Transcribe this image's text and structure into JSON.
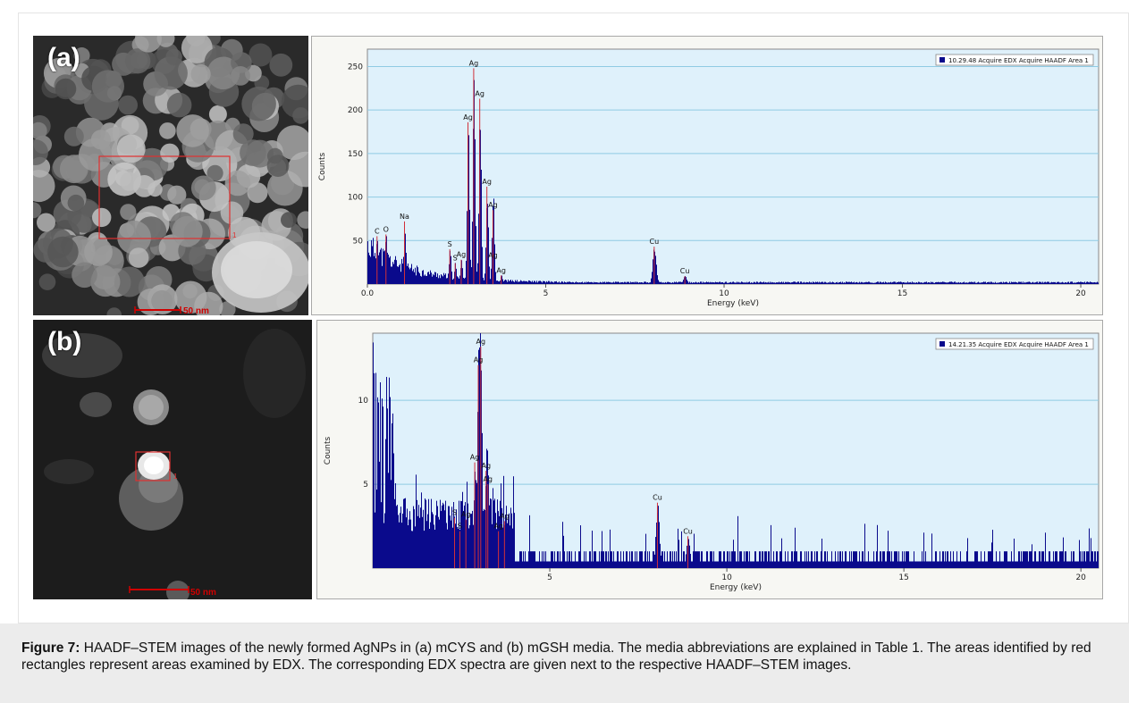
{
  "panels": [
    {
      "id": "a",
      "tag": "(a)",
      "scale_label": "50 nm",
      "region_label": "1",
      "chart_data": {
        "type": "bar",
        "xlabel": "Energy (keV)",
        "ylabel": "Counts",
        "xlim": [
          0,
          20.5
        ],
        "ylim": [
          0,
          270
        ],
        "xticks": [
          "0.0",
          "5",
          "10",
          "15",
          "20"
        ],
        "yticks": [
          "50",
          "100",
          "150",
          "200",
          "250"
        ],
        "legend": "10.29.48 Acquire EDX Acquire HAADF Area 1",
        "legend_position": "top-right",
        "grid": "horizontal",
        "peaks": [
          {
            "label": "C",
            "x": 0.27,
            "y": 55
          },
          {
            "label": "O",
            "x": 0.52,
            "y": 57
          },
          {
            "label": "Na",
            "x": 1.04,
            "y": 72
          },
          {
            "label": "S",
            "x": 2.31,
            "y": 40
          },
          {
            "label": "S",
            "x": 2.46,
            "y": 24
          },
          {
            "label": "Ag",
            "x": 2.63,
            "y": 28
          },
          {
            "label": "Ag",
            "x": 2.98,
            "y": 248
          },
          {
            "label": "Ag",
            "x": 3.15,
            "y": 213
          },
          {
            "label": "Ag",
            "x": 2.82,
            "y": 186
          },
          {
            "label": "Ag",
            "x": 3.35,
            "y": 112
          },
          {
            "label": "Ag",
            "x": 3.52,
            "y": 85
          },
          {
            "label": "Ag",
            "x": 3.52,
            "y": 27
          },
          {
            "label": "Ag",
            "x": 3.75,
            "y": 10
          },
          {
            "label": "Cu",
            "x": 8.04,
            "y": 43
          },
          {
            "label": "Cu",
            "x": 8.9,
            "y": 9
          }
        ]
      }
    },
    {
      "id": "b",
      "tag": "(b)",
      "scale_label": "50 nm",
      "region_label": "1",
      "chart_data": {
        "type": "bar",
        "xlabel": "Energy (keV)",
        "ylabel": "Counts",
        "xlim": [
          0,
          20.5
        ],
        "ylim": [
          0,
          14
        ],
        "xticks": [
          "5",
          "10",
          "15",
          "20"
        ],
        "yticks": [
          "5",
          "10"
        ],
        "legend": "14.21.35 Acquire EDX Acquire HAADF Area 1",
        "legend_position": "top-right",
        "grid": "horizontal",
        "peaks": [
          {
            "label": "Ag",
            "x": 3.05,
            "y": 13.2
          },
          {
            "label": "Ag",
            "x": 2.98,
            "y": 12.1
          },
          {
            "label": "Ag",
            "x": 2.88,
            "y": 6.3
          },
          {
            "label": "Ag",
            "x": 3.2,
            "y": 5.8
          },
          {
            "label": "Ag",
            "x": 3.25,
            "y": 5.0
          },
          {
            "label": "S",
            "x": 2.31,
            "y": 3.0
          },
          {
            "label": "S",
            "x": 2.46,
            "y": 2.2
          },
          {
            "label": "Ag",
            "x": 2.63,
            "y": 2.9
          },
          {
            "label": "Ag",
            "x": 3.55,
            "y": 2.2
          },
          {
            "label": "Ag",
            "x": 3.72,
            "y": 2.8
          },
          {
            "label": "Cu",
            "x": 8.04,
            "y": 3.9
          },
          {
            "label": "Cu",
            "x": 8.9,
            "y": 1.9
          }
        ]
      }
    }
  ],
  "caption": {
    "label": "Figure 7:",
    "text": " HAADF–STEM images of the newly formed AgNPs in (a) mCYS and (b) mGSH media. The media abbreviations are explained in Table 1. The areas identified by red rectangles represent areas examined by EDX. The corresponding EDX spectra are given next to the respective HAADF–STEM images."
  },
  "colors": {
    "bars": "#0a0a8c",
    "peak_marker": "#d0303a",
    "plot_bg": "#dff1fb",
    "grid": "#8fcbe3",
    "highlight": "#d93030"
  }
}
